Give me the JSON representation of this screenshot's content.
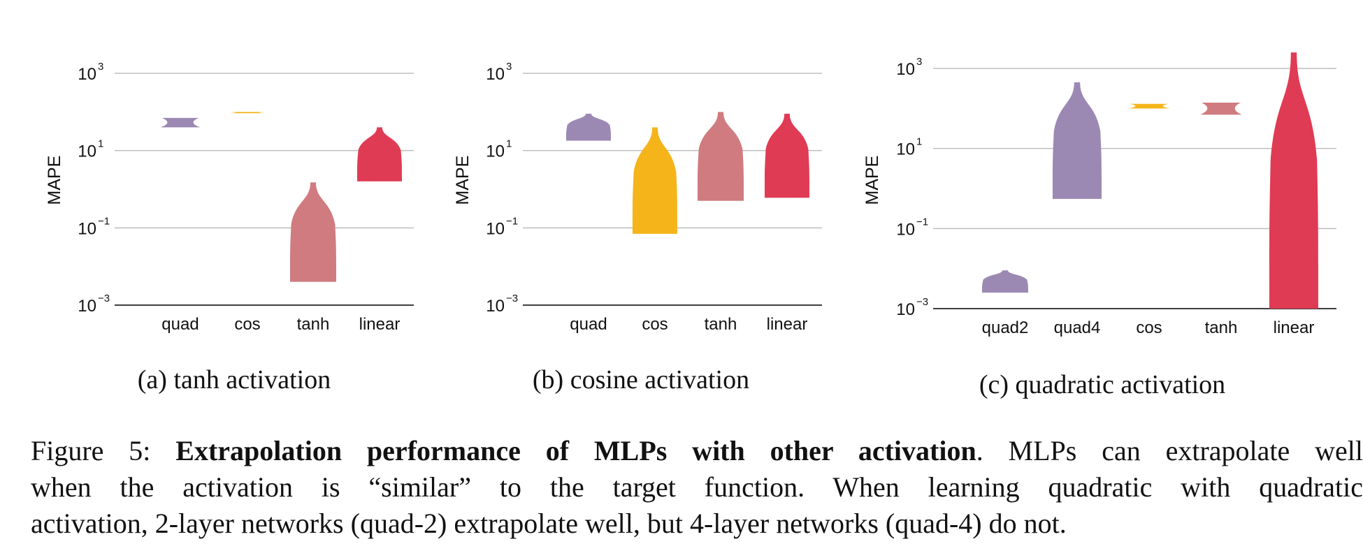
{
  "chart_data": [
    {
      "type": "violin",
      "ylabel": "MAPE",
      "yscale": "log",
      "ylim_exp": [
        -3,
        3
      ],
      "yticks": [
        {
          "base": "10",
          "exp": "−3"
        },
        {
          "base": "10",
          "exp": "−1"
        },
        {
          "base": "10",
          "exp": "1"
        },
        {
          "base": "10",
          "exp": "3"
        }
      ],
      "grid": "horizontal",
      "categories": [
        "quad",
        "cos",
        "tanh",
        "linear"
      ],
      "colors": [
        "#9b89b3",
        "#f5b41a",
        "#cf7b7f",
        "#e03b54"
      ],
      "violins": [
        {
          "min": 40,
          "max": 70
        },
        {
          "min": 93,
          "max": 100
        },
        {
          "min": 0.004,
          "max": 1.5
        },
        {
          "min": 1.6,
          "max": 40
        }
      ],
      "caption": "(a) tanh activation"
    },
    {
      "type": "violin",
      "ylabel": "MAPE",
      "yscale": "log",
      "ylim_exp": [
        -3,
        3
      ],
      "yticks": [
        {
          "base": "10",
          "exp": "−3"
        },
        {
          "base": "10",
          "exp": "−1"
        },
        {
          "base": "10",
          "exp": "1"
        },
        {
          "base": "10",
          "exp": "3"
        }
      ],
      "grid": "horizontal",
      "categories": [
        "quad",
        "cos",
        "tanh",
        "linear"
      ],
      "colors": [
        "#9b89b3",
        "#f5b41a",
        "#cf7b7f",
        "#e03b54"
      ],
      "violins": [
        {
          "min": 18,
          "max": 90
        },
        {
          "min": 0.07,
          "max": 40
        },
        {
          "min": 0.5,
          "max": 100
        },
        {
          "min": 0.6,
          "max": 90
        }
      ],
      "caption": "(b) cosine activation"
    },
    {
      "type": "violin",
      "ylabel": "MAPE",
      "yscale": "log",
      "ylim_exp": [
        -3,
        3
      ],
      "yticks": [
        {
          "base": "10",
          "exp": "−3"
        },
        {
          "base": "10",
          "exp": "−1"
        },
        {
          "base": "10",
          "exp": "1"
        },
        {
          "base": "10",
          "exp": "3"
        }
      ],
      "grid": "horizontal",
      "categories": [
        "quad2",
        "quad4",
        "cos",
        "tanh",
        "linear"
      ],
      "colors": [
        "#9b89b3",
        "#9b89b3",
        "#f5b41a",
        "#cf7b7f",
        "#e03b54"
      ],
      "violins": [
        {
          "min": 0.0025,
          "max": 0.009
        },
        {
          "min": 0.55,
          "max": 450
        },
        {
          "min": 100,
          "max": 130
        },
        {
          "min": 70,
          "max": 140
        },
        {
          "min": 0.001,
          "max": 2500
        }
      ],
      "caption": "(c) quadratic activation"
    }
  ],
  "figure_caption": {
    "prefix": "Figure 5: ",
    "bold": "Extrapolation performance of MLPs with other activation",
    "line1_rest": ". MLPs can extrapolate well",
    "line2": "when the activation is “similar” to the target function.  When learning quadratic with quadratic",
    "line3": "activation, 2-layer networks (quad-2) extrapolate well, but 4-layer networks (quad-4) do not."
  }
}
